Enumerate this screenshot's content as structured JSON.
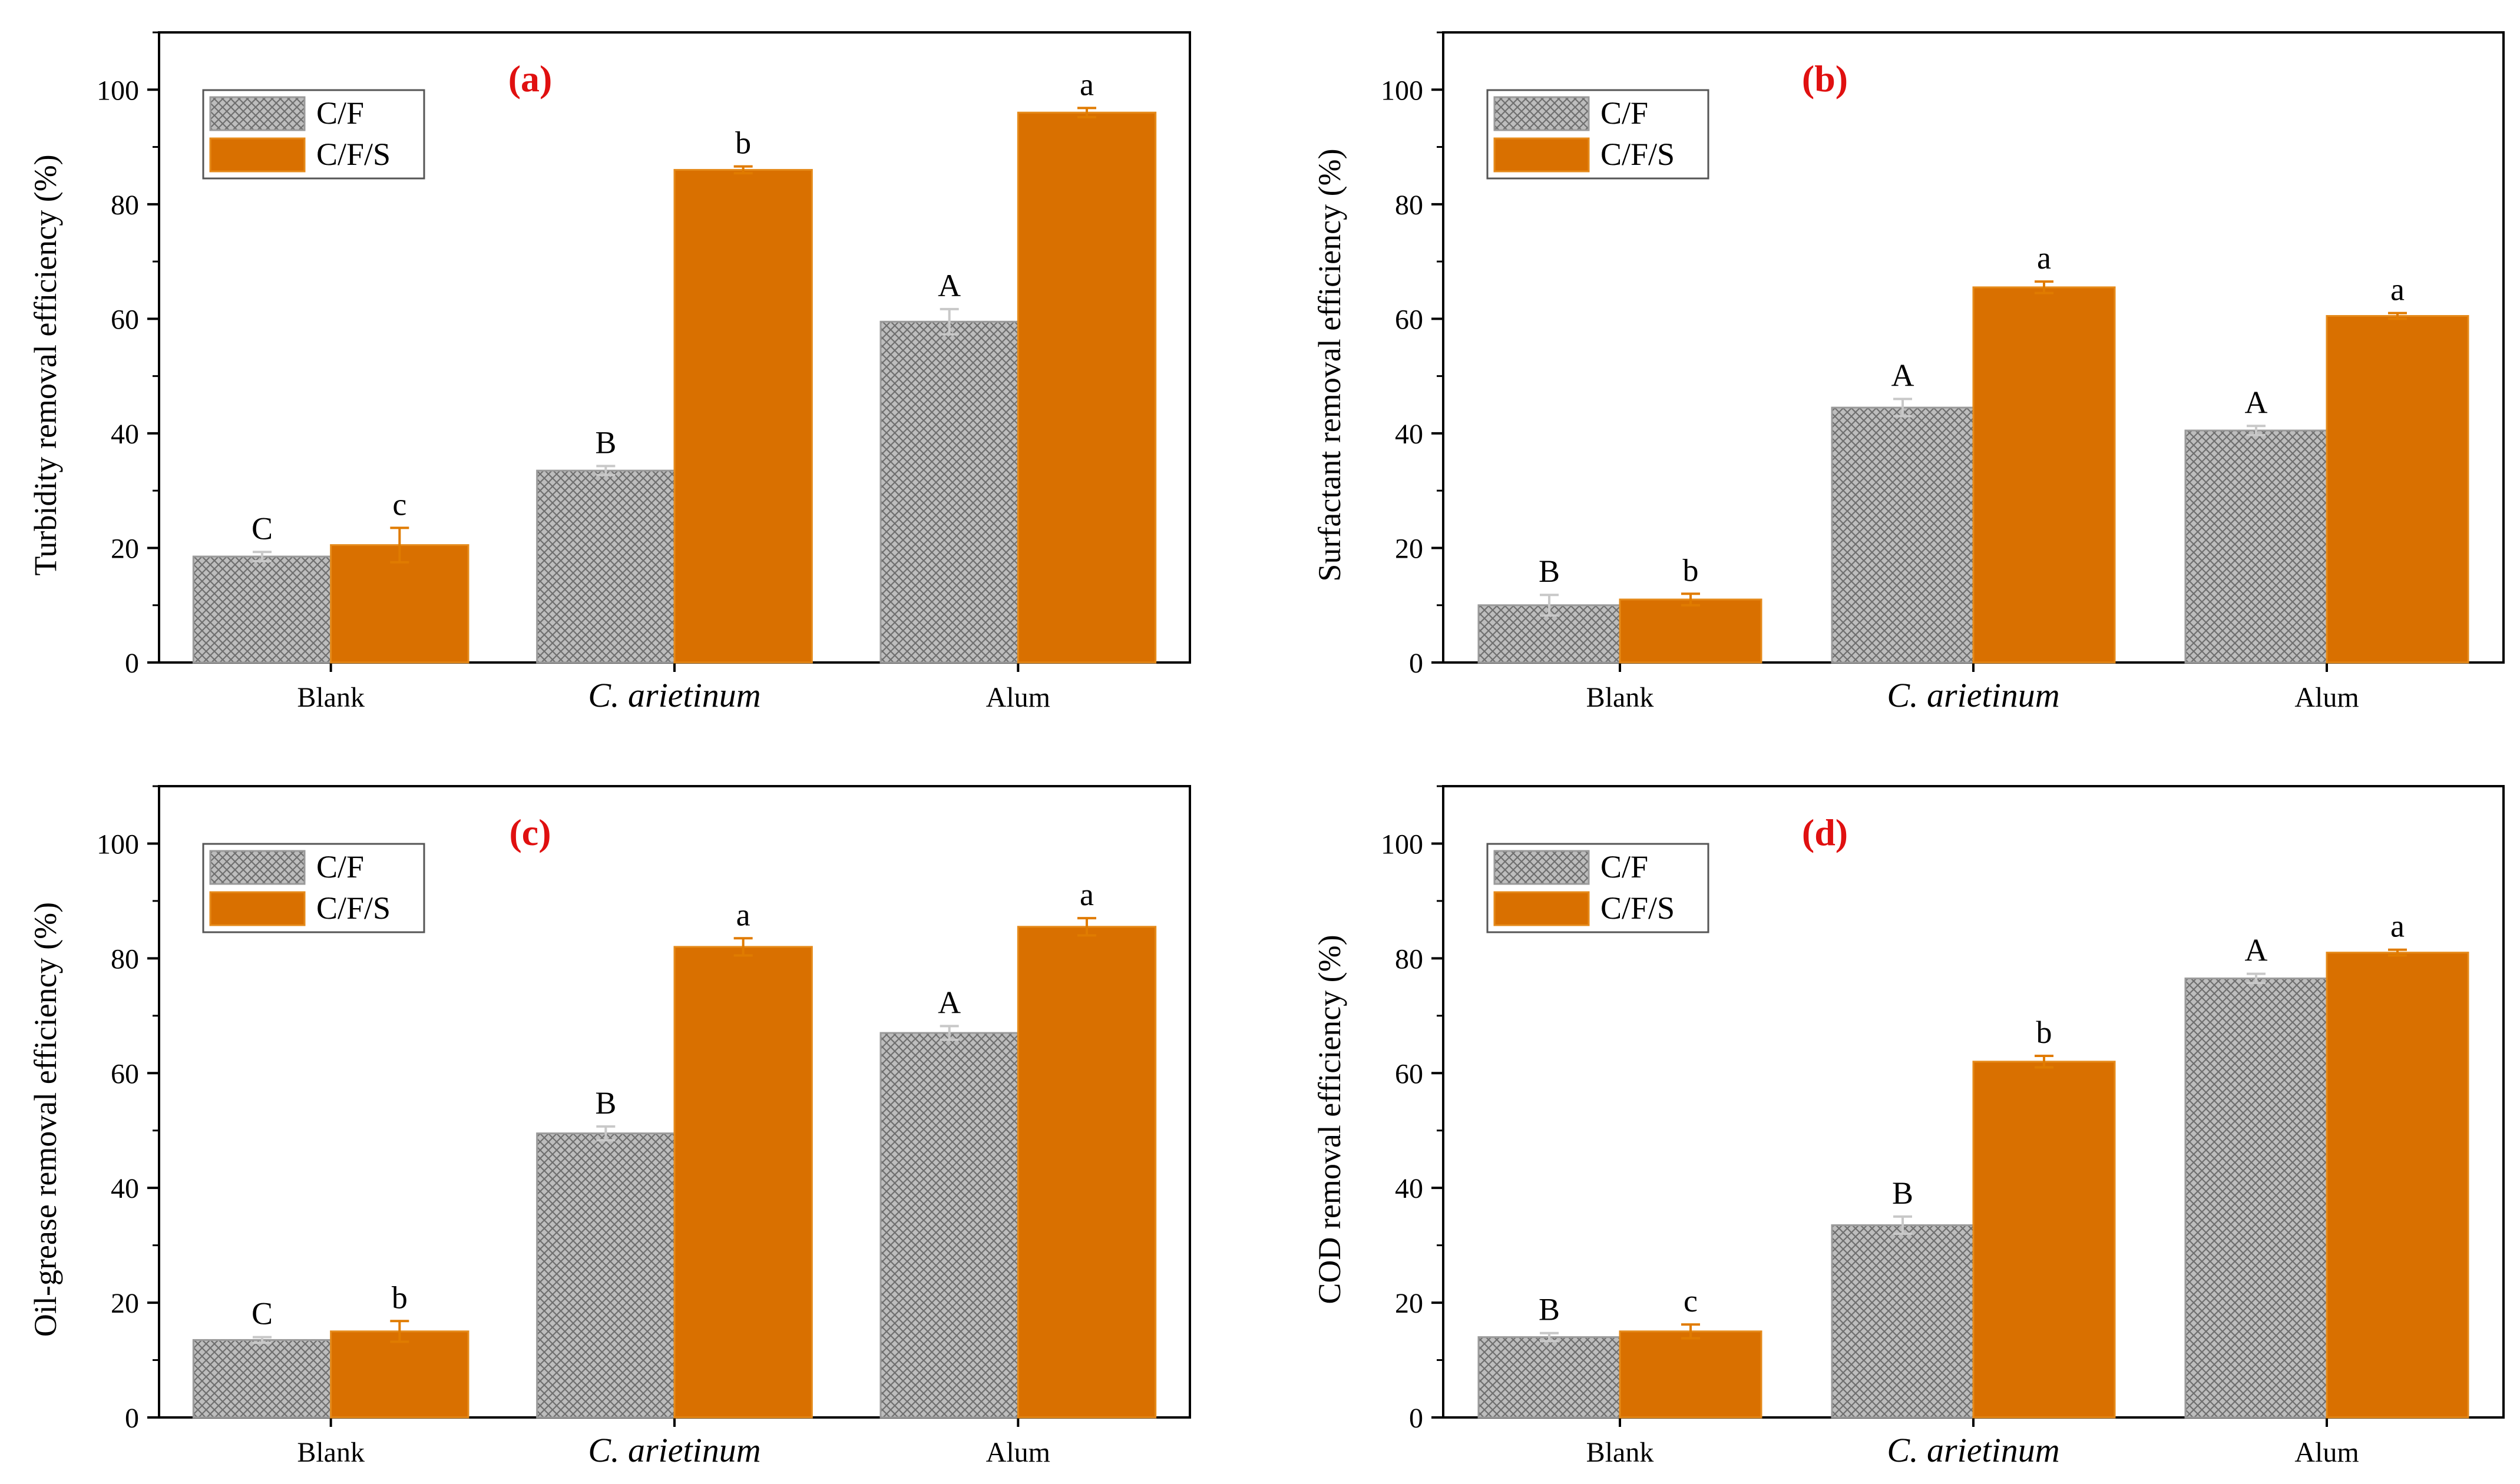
{
  "figure": {
    "colors": {
      "cf_fill": "#bdbdbd",
      "cf_hatch": "#6f6f6f",
      "cf_error": "#c8c8c8",
      "cfs_fill": "#d97000",
      "cfs_border": "#e58a1a",
      "cfs_error": "#e07b00",
      "panel_label": "#e01010",
      "axis": "#000000"
    }
  },
  "chart_data": [
    {
      "type": "bar",
      "panel": "(a)",
      "ylabel": "Turbidity removal efficiency (%)",
      "ylim": [
        0,
        110
      ],
      "yticks": [
        0,
        20,
        40,
        60,
        80,
        100
      ],
      "categories": [
        "Blank",
        "C. arietinum",
        "Alum"
      ],
      "category_italic": [
        false,
        true,
        false
      ],
      "legend": [
        "C/F",
        "C/F/S"
      ],
      "series": [
        {
          "name": "C/F",
          "values": [
            18.5,
            33.5,
            59.5
          ],
          "errors": [
            0.8,
            0.8,
            2.2
          ],
          "letters": [
            "C",
            "B",
            "A"
          ]
        },
        {
          "name": "C/F/S",
          "values": [
            20.5,
            86.0,
            96.0
          ],
          "errors": [
            3.0,
            0.6,
            0.8
          ],
          "letters": [
            "c",
            "b",
            "a"
          ]
        }
      ]
    },
    {
      "type": "bar",
      "panel": "(b)",
      "ylabel": "Surfactant removal efficiency (%)",
      "ylim": [
        0,
        110
      ],
      "yticks": [
        0,
        20,
        40,
        60,
        80,
        100
      ],
      "categories": [
        "Blank",
        "C. arietinum",
        "Alum"
      ],
      "category_italic": [
        false,
        true,
        false
      ],
      "legend": [
        "C/F",
        "C/F/S"
      ],
      "series": [
        {
          "name": "C/F",
          "values": [
            10.0,
            44.5,
            40.5
          ],
          "errors": [
            1.8,
            1.5,
            0.8
          ],
          "letters": [
            "B",
            "A",
            "A"
          ]
        },
        {
          "name": "C/F/S",
          "values": [
            11.0,
            65.5,
            60.5
          ],
          "errors": [
            1.0,
            1.0,
            0.5
          ],
          "letters": [
            "b",
            "a",
            "a"
          ]
        }
      ]
    },
    {
      "type": "bar",
      "panel": "(c)",
      "ylabel": "Oil-grease removal efficiency (%)",
      "ylim": [
        0,
        110
      ],
      "yticks": [
        0,
        20,
        40,
        60,
        80,
        100
      ],
      "categories": [
        "Blank",
        "C. arietinum",
        "Alum"
      ],
      "category_italic": [
        false,
        true,
        false
      ],
      "legend": [
        "C/F",
        "C/F/S"
      ],
      "series": [
        {
          "name": "C/F",
          "values": [
            13.5,
            49.5,
            67.0
          ],
          "errors": [
            0.5,
            1.2,
            1.2
          ],
          "letters": [
            "C",
            "B",
            "A"
          ]
        },
        {
          "name": "C/F/S",
          "values": [
            15.0,
            82.0,
            85.5
          ],
          "errors": [
            1.8,
            1.5,
            1.5
          ],
          "letters": [
            "b",
            "a",
            "a"
          ]
        }
      ]
    },
    {
      "type": "bar",
      "panel": "(d)",
      "ylabel": "COD removal efficiency (%)",
      "ylim": [
        0,
        110
      ],
      "yticks": [
        0,
        20,
        40,
        60,
        80,
        100
      ],
      "categories": [
        "Blank",
        "C. arietinum",
        "Alum"
      ],
      "category_italic": [
        false,
        true,
        false
      ],
      "legend": [
        "C/F",
        "C/F/S"
      ],
      "series": [
        {
          "name": "C/F",
          "values": [
            14.0,
            33.5,
            76.5
          ],
          "errors": [
            0.7,
            1.5,
            0.8
          ],
          "letters": [
            "B",
            "B",
            "A"
          ]
        },
        {
          "name": "C/F/S",
          "values": [
            15.0,
            62.0,
            81.0
          ],
          "errors": [
            1.2,
            1.0,
            0.5
          ],
          "letters": [
            "c",
            "b",
            "a"
          ]
        }
      ]
    }
  ]
}
